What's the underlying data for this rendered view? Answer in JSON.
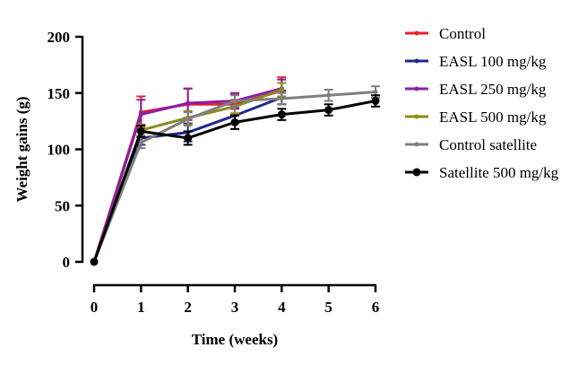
{
  "chart_data": {
    "type": "line",
    "title": "",
    "xlabel": "Time (weeks)",
    "ylabel": "Weight gains (g)",
    "xlim": [
      0,
      6
    ],
    "ylim": [
      0,
      200
    ],
    "xticks": [
      "0",
      "1",
      "2",
      "3",
      "4",
      "5",
      "6"
    ],
    "yticks": [
      "0",
      "50",
      "100",
      "150",
      "200"
    ],
    "grid": false,
    "legend_position": "right",
    "series": [
      {
        "name": "Control",
        "color": "#e8202a",
        "marker": "dot",
        "x": [
          0,
          1,
          2,
          3,
          4
        ],
        "y": [
          0,
          133,
          140,
          140,
          152
        ],
        "err": [
          0,
          14,
          14,
          9,
          12
        ]
      },
      {
        "name": "EASL 100 mg/kg",
        "color": "#1f2a8c",
        "marker": "dot",
        "x": [
          0,
          1,
          2,
          3,
          4
        ],
        "y": [
          0,
          110,
          115,
          130,
          146
        ],
        "err": [
          0,
          6,
          8,
          7,
          6
        ]
      },
      {
        "name": "EASL 250 mg/kg",
        "color": "#8a1fa6",
        "marker": "dot",
        "x": [
          0,
          1,
          2,
          3,
          4
        ],
        "y": [
          0,
          131,
          141,
          143,
          154
        ],
        "err": [
          0,
          13,
          13,
          7,
          8
        ]
      },
      {
        "name": "EASL 500 mg/kg",
        "color": "#8b8b1c",
        "marker": "dot",
        "x": [
          0,
          1,
          2,
          3,
          4
        ],
        "y": [
          0,
          117,
          128,
          138,
          153
        ],
        "err": [
          0,
          5,
          6,
          6,
          6
        ]
      },
      {
        "name": "Control satellite",
        "color": "#7f7f7f",
        "marker": "dot",
        "x": [
          0,
          1,
          2,
          3,
          4,
          5,
          6
        ],
        "y": [
          0,
          106,
          127,
          143,
          145,
          148,
          151
        ],
        "err": [
          0,
          5,
          6,
          5,
          5,
          5,
          5
        ]
      },
      {
        "name": "Satellite 500 mg/kg",
        "color": "#000000",
        "marker": "circle",
        "x": [
          0,
          1,
          2,
          3,
          4,
          5,
          6
        ],
        "y": [
          0,
          116,
          110,
          124,
          131,
          135,
          143
        ],
        "err": [
          0,
          5,
          6,
          6,
          5,
          5,
          5
        ]
      }
    ]
  }
}
